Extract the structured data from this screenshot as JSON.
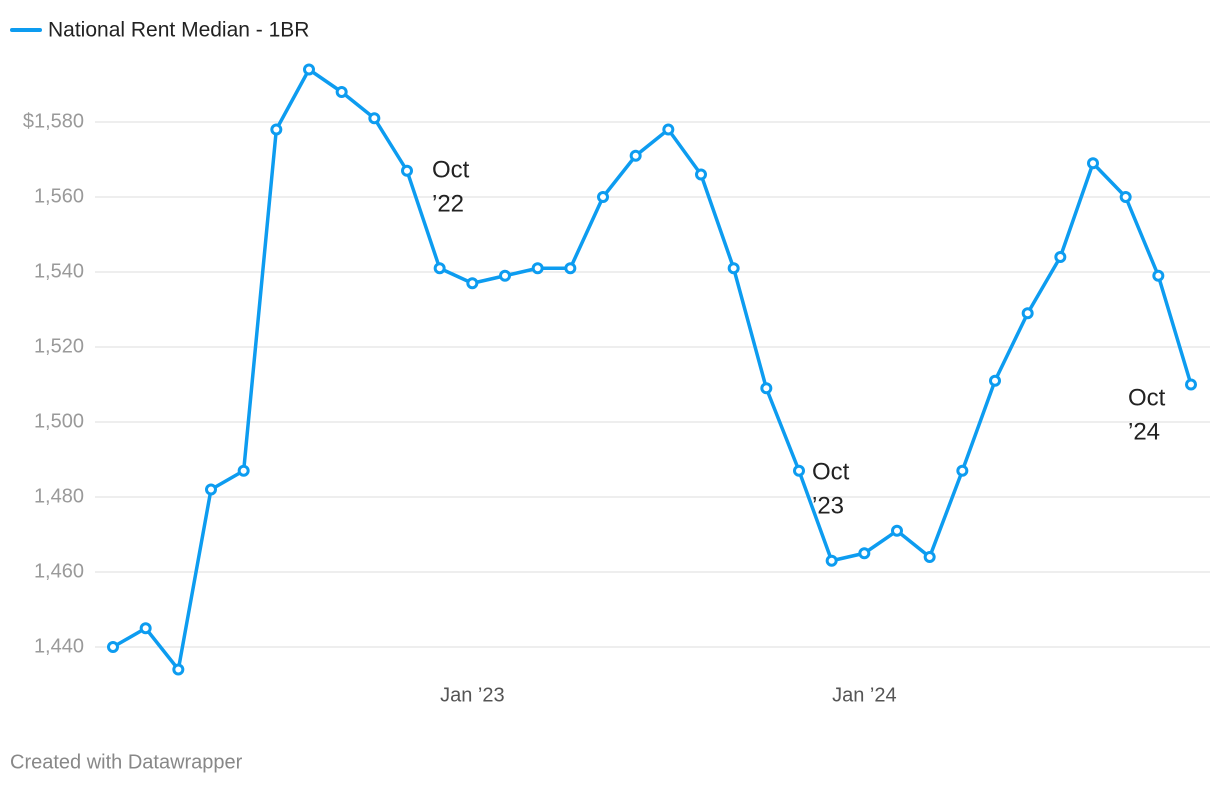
{
  "chart_data": {
    "type": "line",
    "series": [
      {
        "name": "National Rent Median - 1BR",
        "color": "#0d9cf0",
        "values": [
          1440,
          1445,
          1434,
          1482,
          1487,
          1578,
          1594,
          1588,
          1581,
          1567,
          1541,
          1537,
          1539,
          1541,
          1541,
          1560,
          1571,
          1578,
          1566,
          1541,
          1509,
          1487,
          1463,
          1465,
          1471,
          1464,
          1487,
          1511,
          1529,
          1544,
          1569,
          1560,
          1539,
          1510
        ]
      }
    ],
    "categories": [
      null,
      null,
      null,
      null,
      null,
      null,
      null,
      null,
      null,
      null,
      null,
      "Jan ’23",
      null,
      null,
      null,
      null,
      null,
      null,
      null,
      null,
      null,
      null,
      null,
      "Jan ’24",
      null,
      null,
      null,
      null,
      null,
      null,
      null,
      null,
      null,
      null
    ],
    "ylim": [
      1430,
      1600
    ],
    "yticks": [
      {
        "value": 1440,
        "label": "1,440"
      },
      {
        "value": 1460,
        "label": "1,460"
      },
      {
        "value": 1480,
        "label": "1,480"
      },
      {
        "value": 1500,
        "label": "1,500"
      },
      {
        "value": 1520,
        "label": "1,520"
      },
      {
        "value": 1540,
        "label": "1,540"
      },
      {
        "value": 1560,
        "label": "1,560"
      },
      {
        "value": 1580,
        "label": "$1,580"
      }
    ],
    "grid": true,
    "annotations": [
      [
        "Oct",
        "’22"
      ],
      [
        "Oct",
        "’23"
      ],
      [
        "Oct",
        "’24"
      ]
    ],
    "source": "Created with Datawrapper"
  }
}
